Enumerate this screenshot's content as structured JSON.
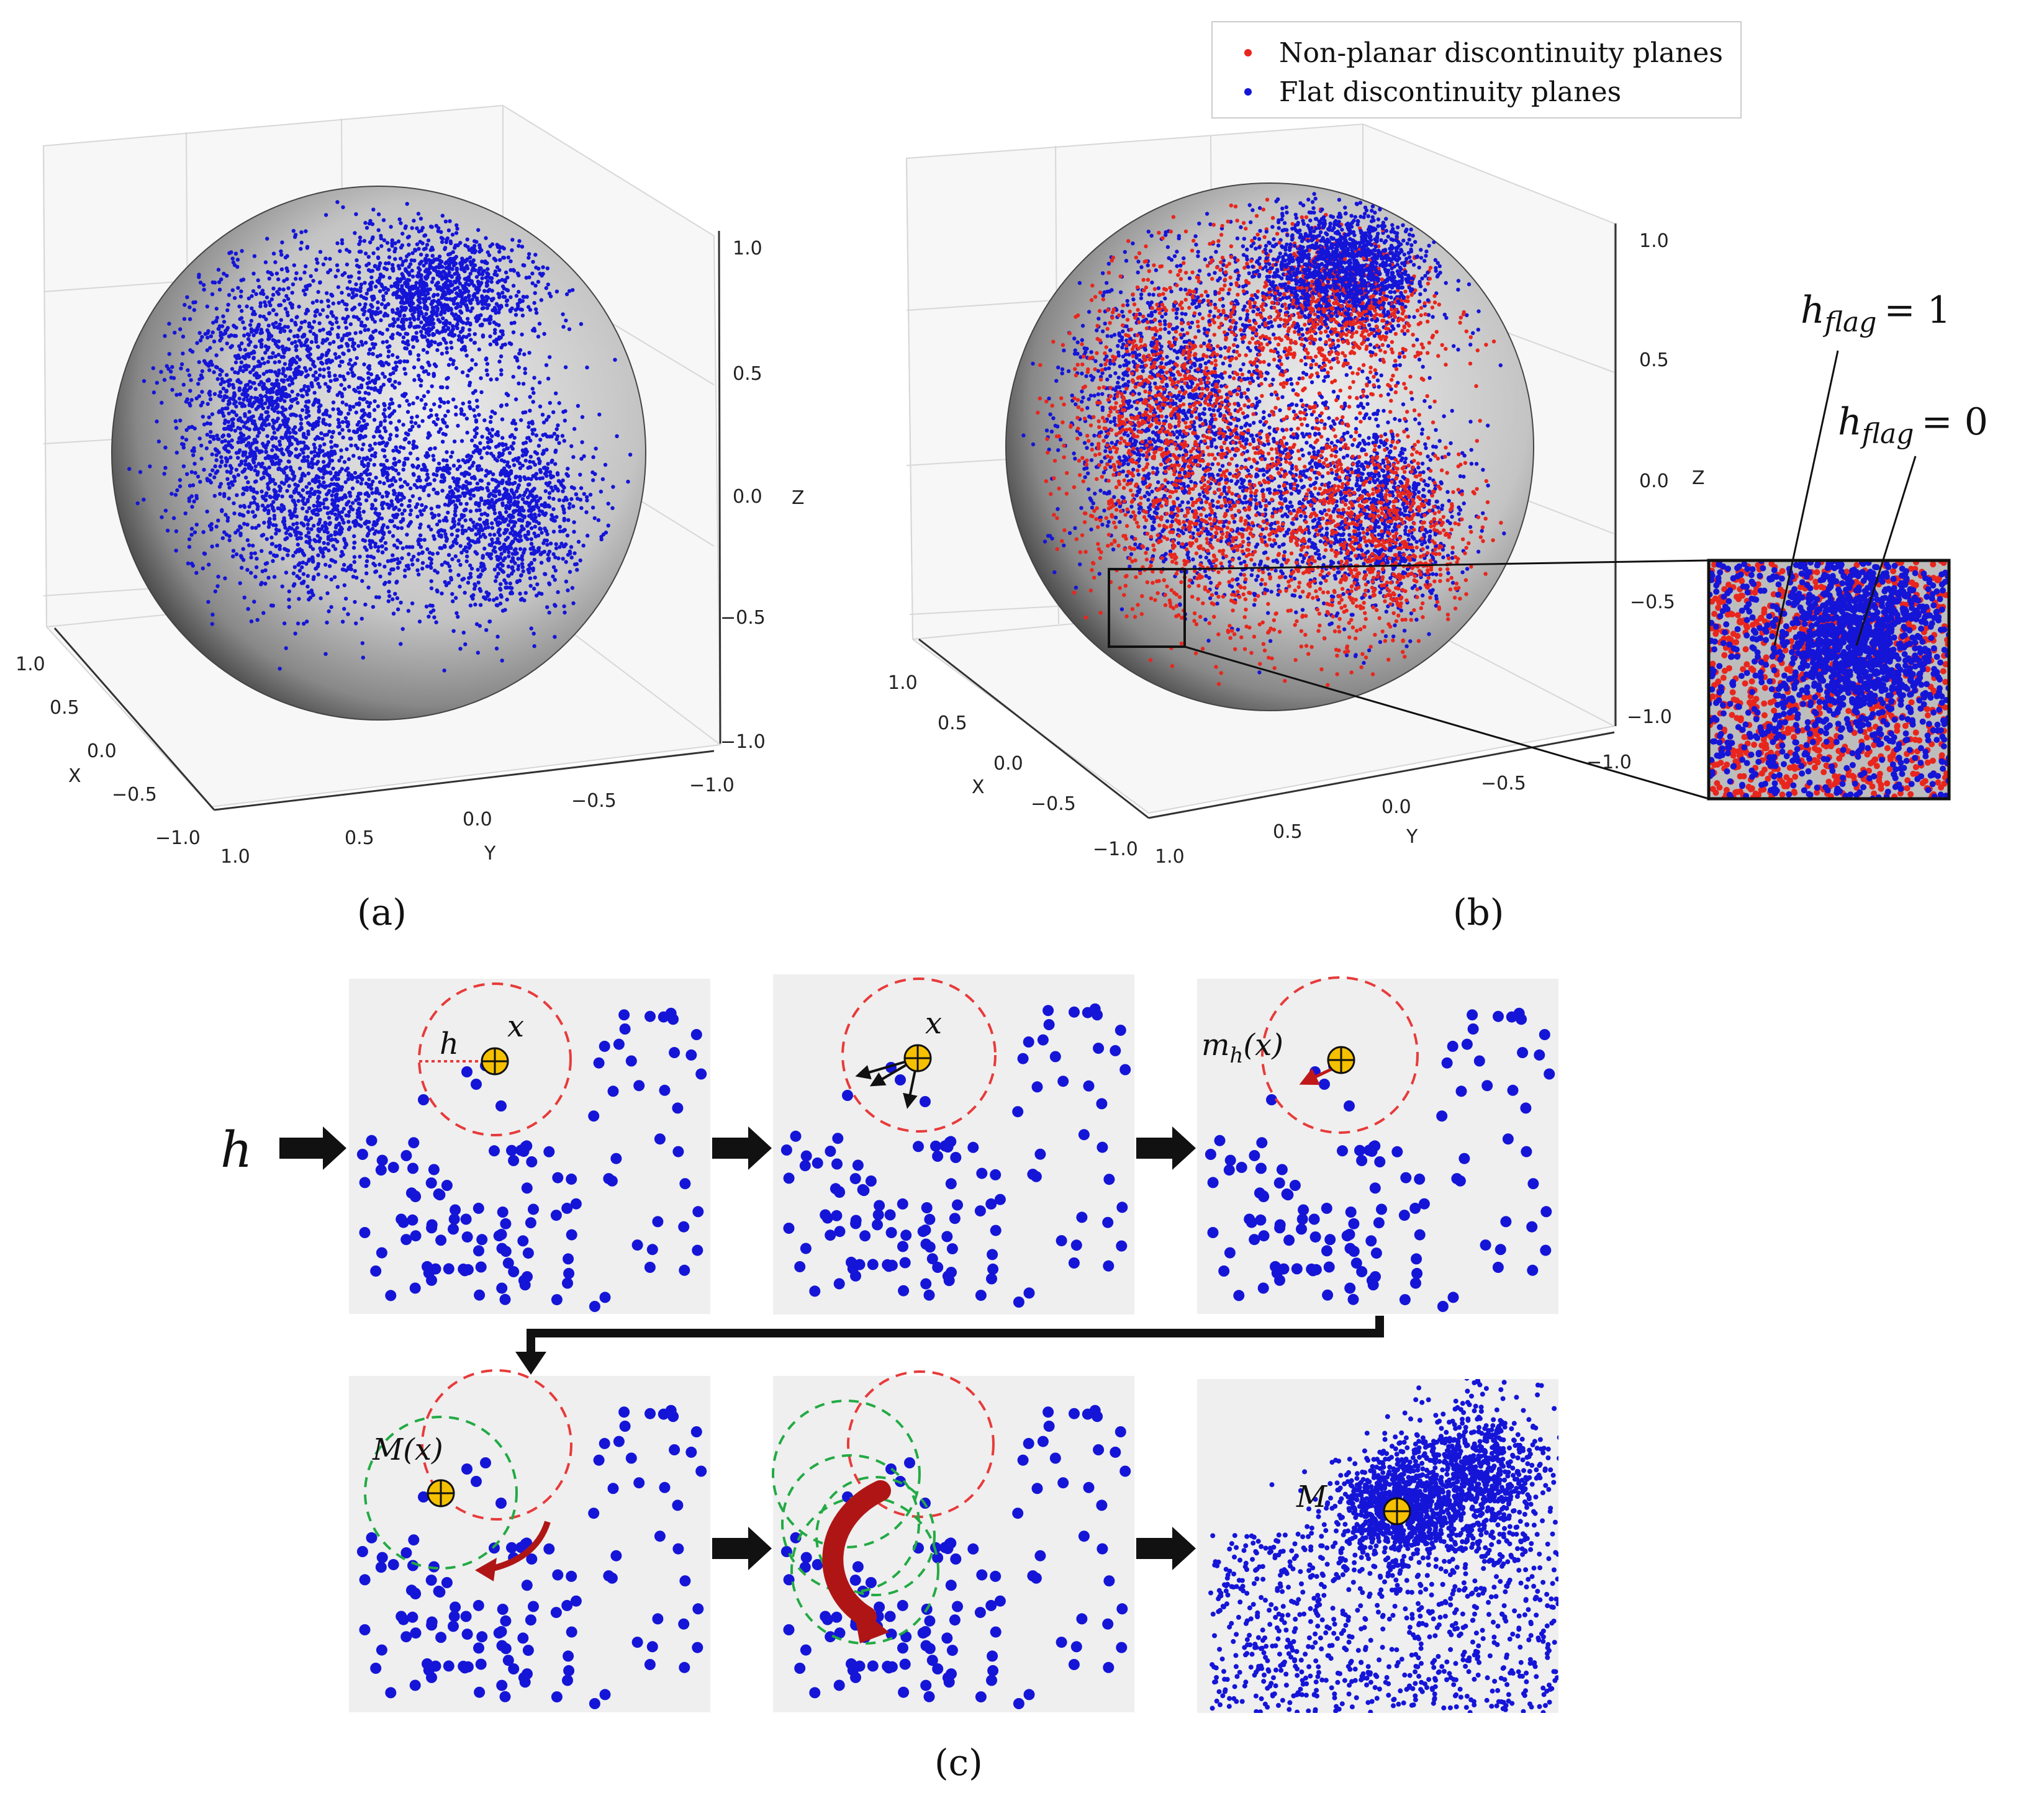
{
  "panel_a": {
    "caption": "(a)",
    "z_ticks": [
      "1.0",
      "0.5",
      "0.0",
      "−0.5",
      "−1.0"
    ],
    "x_ticks": [
      "1.0",
      "0.5",
      "0.0",
      "−0.5",
      "−1.0"
    ],
    "y_ticks": [
      "1.0",
      "0.5",
      "0.0",
      "−0.5",
      "−1.0"
    ],
    "x_label": "X",
    "y_label": "Y",
    "z_label": "Z"
  },
  "panel_b": {
    "caption": "(b)",
    "legend": [
      {
        "label": "Non-planar discontinuity planes",
        "color": "#e8261d"
      },
      {
        "label": "Flat discontinuity planes",
        "color": "#1515d8"
      }
    ],
    "z_ticks": [
      "1.0",
      "0.5",
      "0.0",
      "−0.5",
      "−1.0"
    ],
    "x_ticks": [
      "1.0",
      "0.5",
      "0.0",
      "−0.5",
      "−1.0"
    ],
    "y_ticks": [
      "1.0",
      "0.5",
      "0.0",
      "−0.5",
      "−1.0"
    ],
    "x_label": "X",
    "y_label": "Y",
    "z_label": "Z",
    "flag_base": "h",
    "flag_sub": "flag",
    "flag_1": "= 1",
    "flag_0": "= 0"
  },
  "panel_c": {
    "caption": "(c)",
    "h_input": "h",
    "step1": {
      "h_label": "h",
      "x_label": "x"
    },
    "step2": {
      "x_label": "x"
    },
    "step3": {
      "m_label": "m",
      "m_sub": "h",
      "m_arg": "(x)"
    },
    "step4": {
      "M_label": "M(x)"
    },
    "step6": {
      "M_label": "M"
    }
  },
  "colors": {
    "flat": "#1515d8",
    "nonplanar": "#e8261d",
    "mode_marker": "#f5c000",
    "window_circle": "#e83a3a",
    "shifted_circle": "#22aa44",
    "shift_arrow": "#b01515",
    "cell_bg": "#efefef"
  }
}
